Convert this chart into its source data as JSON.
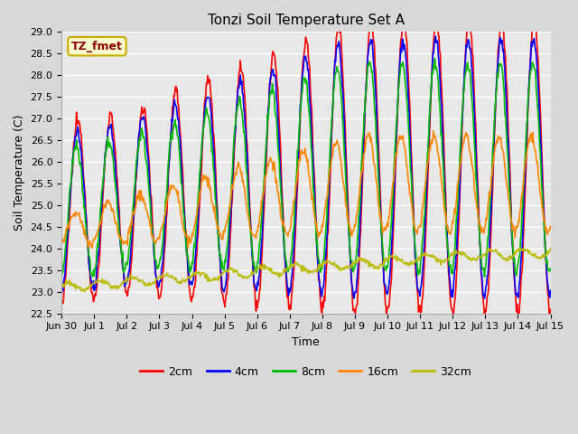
{
  "title": "Tonzi Soil Temperature Set A",
  "xlabel": "Time",
  "ylabel": "Soil Temperature (C)",
  "ylim": [
    22.5,
    29.0
  ],
  "yticks": [
    22.5,
    23.0,
    23.5,
    24.0,
    24.5,
    25.0,
    25.5,
    26.0,
    26.5,
    27.0,
    27.5,
    28.0,
    28.5,
    29.0
  ],
  "fig_bg_color": "#d8d8d8",
  "plot_bg_color": "#e8e8e8",
  "annotation_text": "TZ_fmet",
  "annotation_fg": "#8B0000",
  "annotation_bg": "#ffffcc",
  "series_colors": [
    "#ff0000",
    "#0000ff",
    "#00bb00",
    "#ff8800",
    "#bbbb00"
  ],
  "series_labels": [
    "2cm",
    "4cm",
    "8cm",
    "16cm",
    "32cm"
  ],
  "line_width": 1.2,
  "tick_label_fontsize": 8,
  "title_fontsize": 11,
  "axis_label_fontsize": 9
}
